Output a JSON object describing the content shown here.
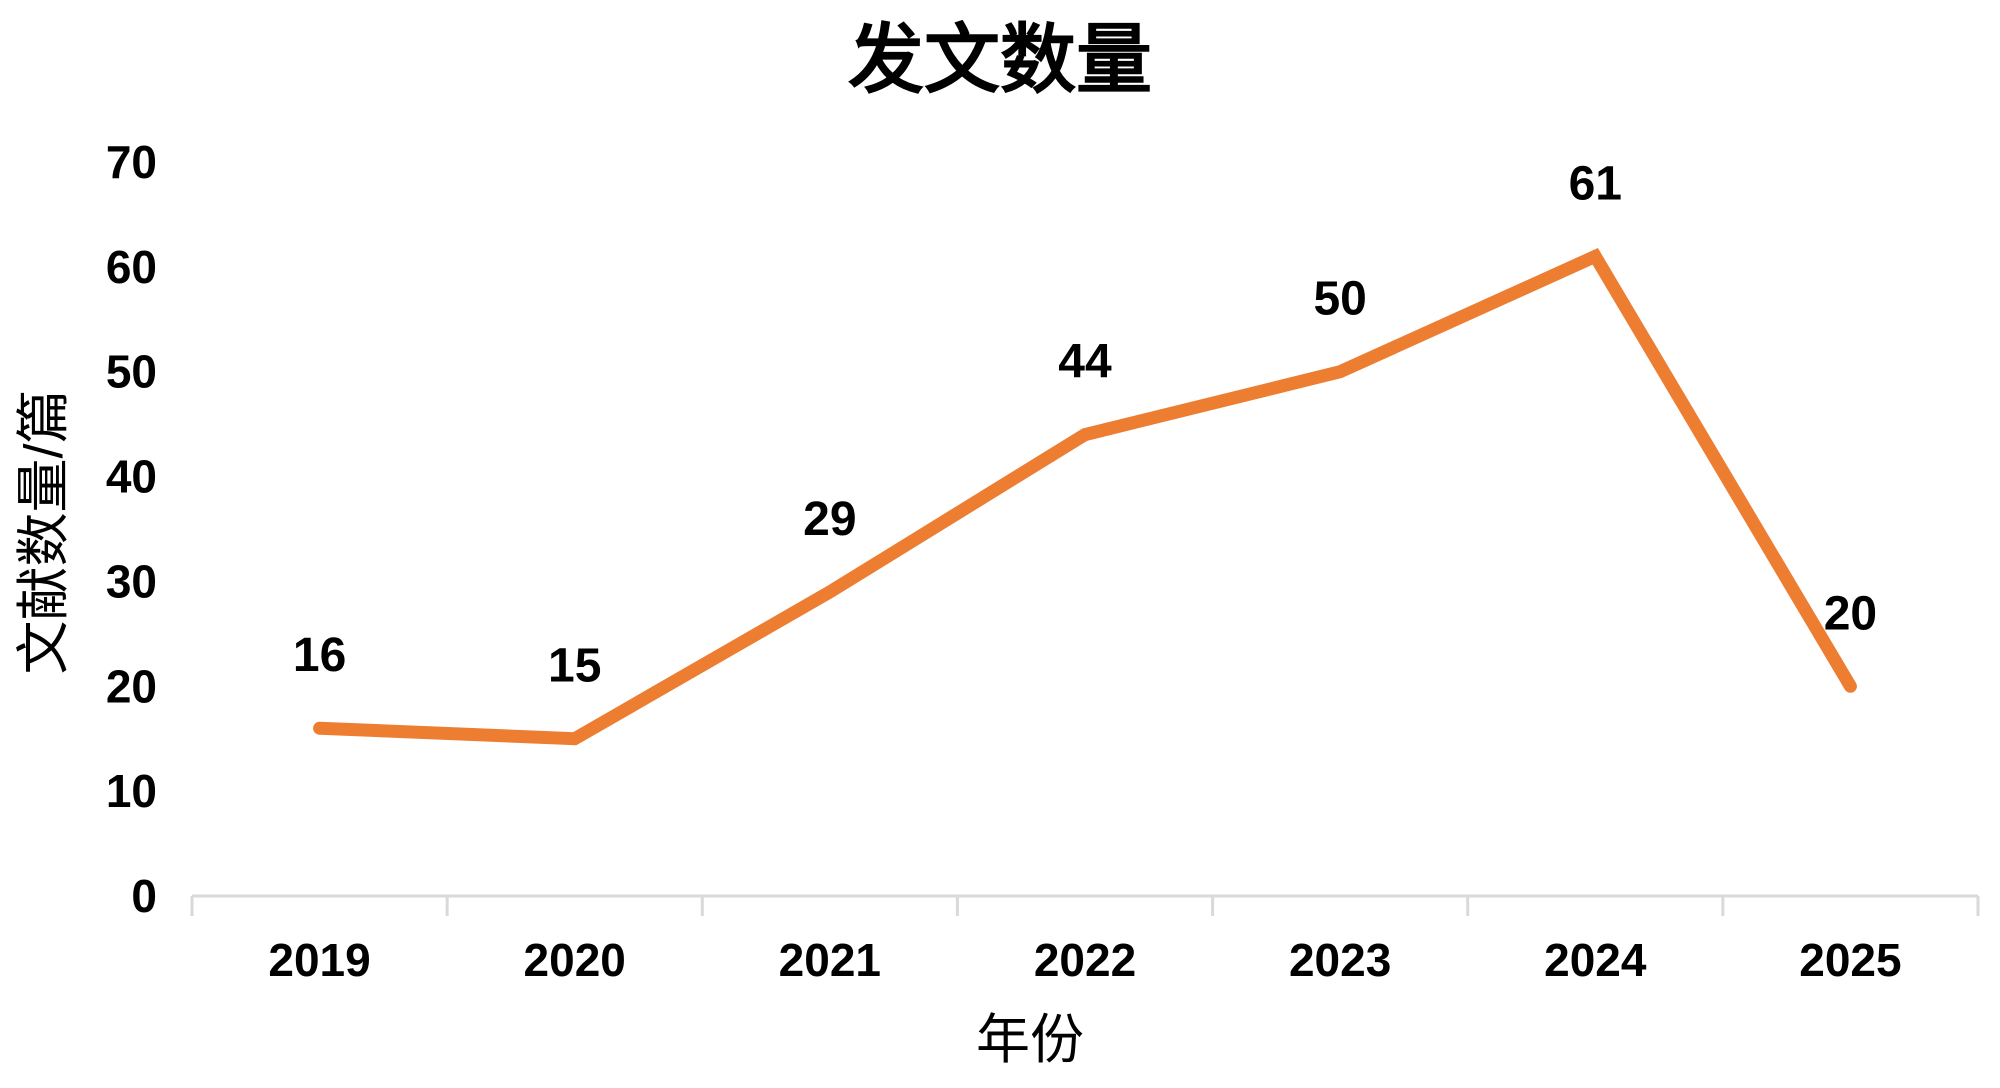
{
  "chart_data": {
    "type": "line",
    "title": "发文数量",
    "xlabel": "年份",
    "ylabel": "文献数量/篇",
    "categories": [
      "2019",
      "2020",
      "2021",
      "2022",
      "2023",
      "2024",
      "2025"
    ],
    "series": [
      {
        "name": "发文数量",
        "values": [
          16,
          15,
          29,
          44,
          50,
          61,
          20
        ]
      }
    ],
    "data_labels": [
      "16",
      "15",
      "29",
      "44",
      "50",
      "61",
      "20"
    ],
    "yticks": [
      "0",
      "10",
      "20",
      "30",
      "40",
      "50",
      "60",
      "70"
    ],
    "ylim": [
      0,
      70
    ],
    "grid": false,
    "legend": "none",
    "markers": "none",
    "colors": {
      "line": "#ED7D31",
      "axis": "#D9D9D9",
      "text": "#000000",
      "background": "#FFFFFF"
    }
  }
}
